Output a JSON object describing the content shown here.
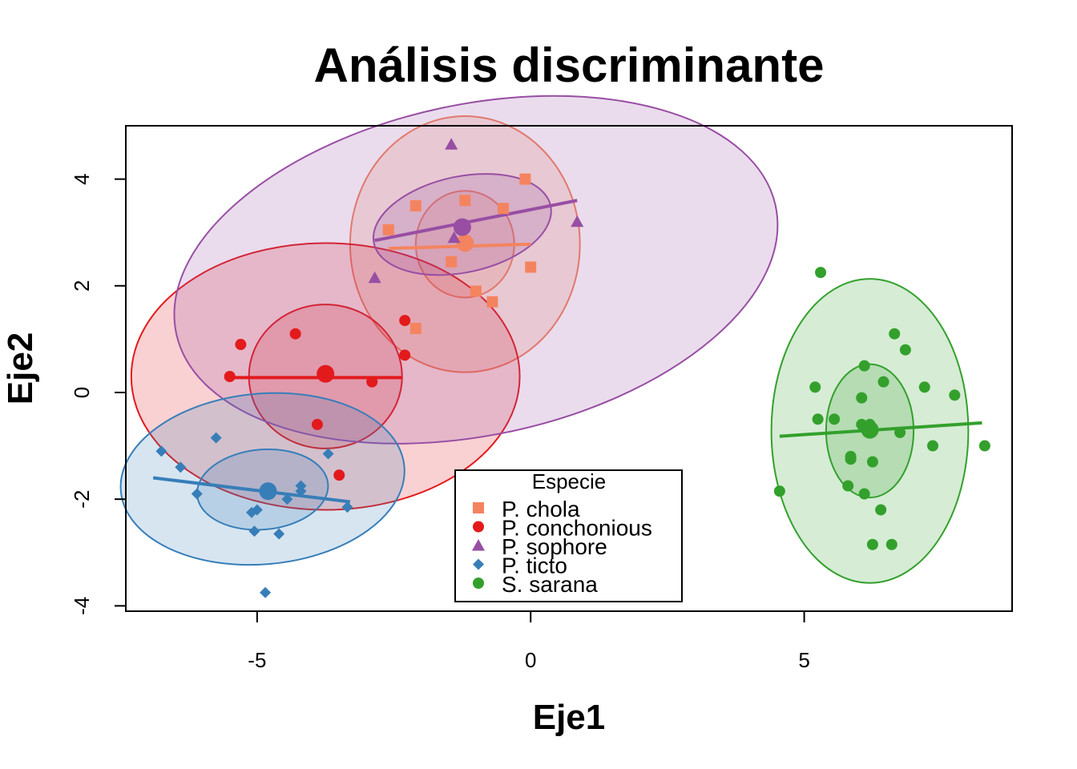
{
  "chart_data": {
    "type": "scatter",
    "title": "Análisis discriminante",
    "xlabel": "Eje1",
    "ylabel": "Eje2",
    "xlim": [
      -7.4,
      8.8
    ],
    "ylim": [
      -4.1,
      5.0
    ],
    "xticks": [
      -5,
      0,
      5
    ],
    "yticks": [
      -4,
      -2,
      0,
      2,
      4
    ],
    "legend": {
      "title": "Especie",
      "position": "bottom-center"
    },
    "series": [
      {
        "name": "P. chola",
        "color": "#F4845F",
        "marker": "square",
        "centroid": [
          -1.2,
          2.8
        ],
        "points": [
          [
            -0.1,
            4.0
          ],
          [
            -1.2,
            3.6
          ],
          [
            -2.1,
            3.5
          ],
          [
            -0.5,
            3.45
          ],
          [
            -2.6,
            3.05
          ],
          [
            0.0,
            2.35
          ],
          [
            -1.45,
            2.45
          ],
          [
            -1.0,
            1.9
          ],
          [
            -0.7,
            1.7
          ],
          [
            -2.1,
            1.2
          ]
        ],
        "ellipses": [
          {
            "cx": -1.2,
            "cy": 2.78,
            "rx": 2.1,
            "ry": 2.4,
            "angle": 0
          },
          {
            "cx": -1.2,
            "cy": 2.78,
            "rx": 0.9,
            "ry": 1.0,
            "angle": 0
          }
        ],
        "axis_line": [
          [
            -2.6,
            2.7
          ],
          [
            0.0,
            2.78
          ]
        ]
      },
      {
        "name": "P. conchonious",
        "color": "#E31A1C",
        "marker": "circle",
        "centroid": [
          -3.75,
          0.35
        ],
        "points": [
          [
            -5.3,
            0.9
          ],
          [
            -4.3,
            1.1
          ],
          [
            -2.3,
            1.35
          ],
          [
            -2.3,
            0.7
          ],
          [
            -5.5,
            0.3
          ],
          [
            -2.9,
            0.2
          ],
          [
            -3.9,
            -0.6
          ],
          [
            -3.5,
            -1.55
          ]
        ],
        "ellipses": [
          {
            "cx": -3.75,
            "cy": 0.3,
            "rx": 3.55,
            "ry": 2.5,
            "angle": 0
          },
          {
            "cx": -3.75,
            "cy": 0.3,
            "rx": 1.4,
            "ry": 1.35,
            "angle": 0
          }
        ],
        "axis_line": [
          [
            -5.6,
            0.28
          ],
          [
            -2.35,
            0.28
          ]
        ]
      },
      {
        "name": "P. sophore",
        "color": "#984EA3",
        "marker": "triangle",
        "centroid": [
          -1.25,
          3.1
        ],
        "points": [
          [
            -1.45,
            4.65
          ],
          [
            0.85,
            3.2
          ],
          [
            -1.4,
            2.9
          ],
          [
            -2.85,
            2.15
          ]
        ],
        "ellipses": [
          {
            "cx": -1.0,
            "cy": 2.3,
            "rx": 5.6,
            "ry": 3.1,
            "angle": -12
          },
          {
            "cx": -1.25,
            "cy": 3.15,
            "rx": 1.65,
            "ry": 0.9,
            "angle": -12
          }
        ],
        "axis_line": [
          [
            -2.85,
            2.85
          ],
          [
            0.85,
            3.6
          ]
        ]
      },
      {
        "name": "P. ticto",
        "color": "#377EB8",
        "marker": "diamond",
        "centroid": [
          -4.8,
          -1.85
        ],
        "points": [
          [
            -6.75,
            -1.1
          ],
          [
            -5.75,
            -0.85
          ],
          [
            -6.4,
            -1.4
          ],
          [
            -6.1,
            -1.9
          ],
          [
            -3.7,
            -1.15
          ],
          [
            -4.2,
            -1.75
          ],
          [
            -4.2,
            -1.85
          ],
          [
            -4.45,
            -2.0
          ],
          [
            -3.35,
            -2.15
          ],
          [
            -5.0,
            -2.2
          ],
          [
            -5.1,
            -2.25
          ],
          [
            -5.05,
            -2.6
          ],
          [
            -4.6,
            -2.65
          ],
          [
            -4.85,
            -3.75
          ]
        ],
        "ellipses": [
          {
            "cx": -4.9,
            "cy": -1.62,
            "rx": 2.6,
            "ry": 1.6,
            "angle": -5
          },
          {
            "cx": -4.9,
            "cy": -1.82,
            "rx": 1.2,
            "ry": 0.75,
            "angle": -5
          }
        ],
        "axis_line": [
          [
            -6.9,
            -1.6
          ],
          [
            -3.3,
            -2.05
          ]
        ]
      },
      {
        "name": "S. sarana",
        "color": "#33A02C",
        "marker": "circle",
        "centroid": [
          6.2,
          -0.7
        ],
        "points": [
          [
            5.3,
            2.25
          ],
          [
            6.65,
            1.1
          ],
          [
            6.85,
            0.8
          ],
          [
            6.1,
            0.5
          ],
          [
            6.45,
            0.2
          ],
          [
            5.2,
            0.1
          ],
          [
            7.2,
            0.1
          ],
          [
            6.05,
            -0.1
          ],
          [
            7.75,
            -0.05
          ],
          [
            5.25,
            -0.5
          ],
          [
            5.55,
            -0.5
          ],
          [
            6.05,
            -0.6
          ],
          [
            6.2,
            -0.6
          ],
          [
            6.75,
            -0.75
          ],
          [
            7.35,
            -1.0
          ],
          [
            8.3,
            -1.0
          ],
          [
            5.85,
            -1.2
          ],
          [
            5.85,
            -1.25
          ],
          [
            6.25,
            -1.3
          ],
          [
            5.8,
            -1.75
          ],
          [
            4.55,
            -1.85
          ],
          [
            6.1,
            -1.9
          ],
          [
            6.4,
            -2.2
          ],
          [
            6.25,
            -2.85
          ],
          [
            6.6,
            -2.85
          ]
        ],
        "ellipses": [
          {
            "cx": 6.2,
            "cy": -0.72,
            "rx": 1.8,
            "ry": 2.85,
            "angle": 0
          },
          {
            "cx": 6.2,
            "cy": -0.72,
            "rx": 0.8,
            "ry": 1.25,
            "angle": 0
          }
        ],
        "axis_line": [
          [
            4.55,
            -0.82
          ],
          [
            8.25,
            -0.57
          ]
        ]
      }
    ]
  }
}
